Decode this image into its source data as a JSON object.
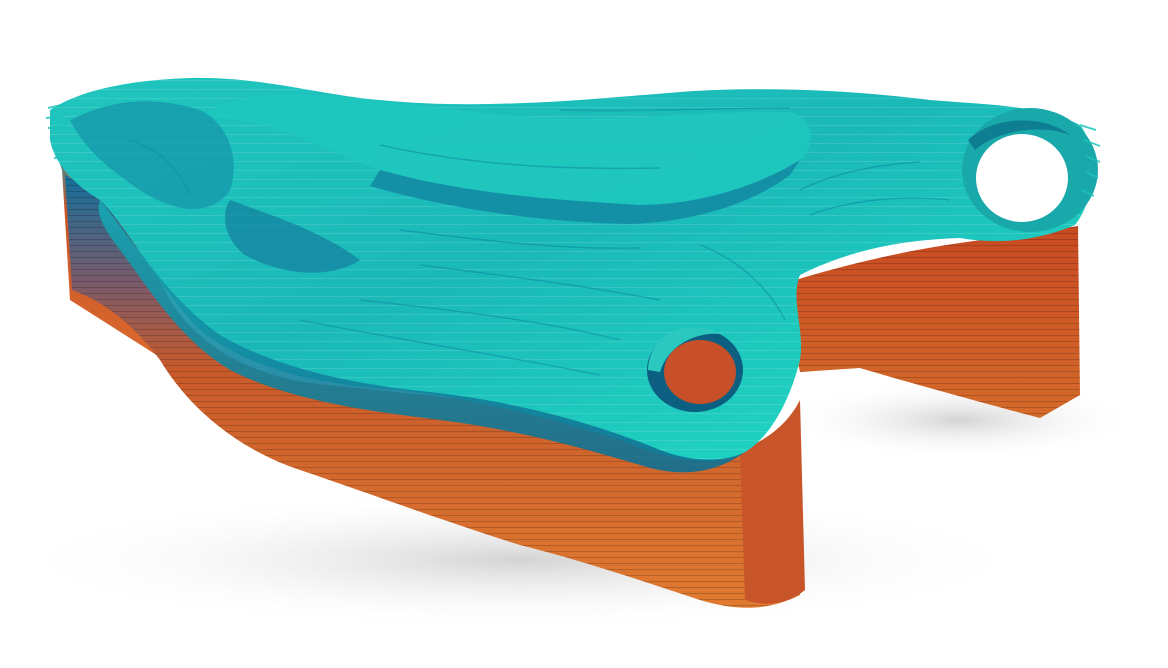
{
  "scene": {
    "subject": "layered-sliced-part",
    "background_color": "#ffffff",
    "colors": {
      "top_light": "#22e0c4",
      "top_mid": "#16b6b8",
      "top_dark": "#0a7d92",
      "blue_band": "#136f9c",
      "side_orange_light": "#e4752c",
      "side_orange_mid": "#d05a24",
      "side_orange_dark": "#a3371a",
      "shadow": "#d9d9d9"
    }
  }
}
